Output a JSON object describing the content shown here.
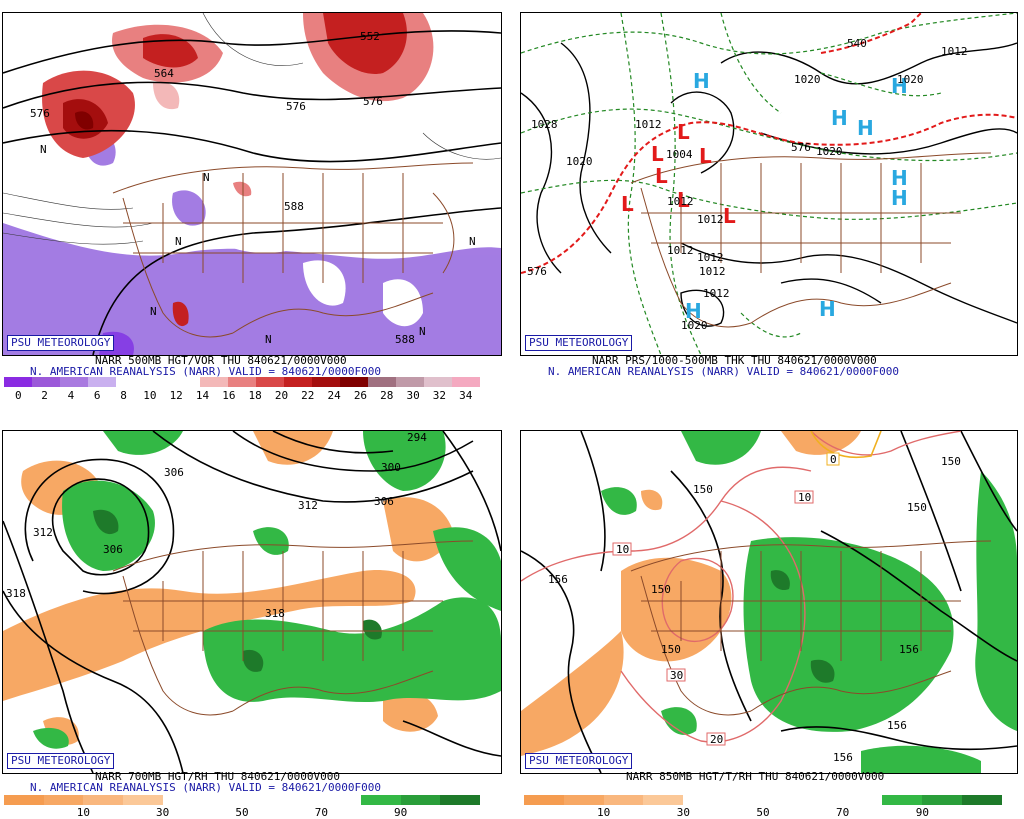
{
  "panels": [
    {
      "id": "p500",
      "badge": "PSU METEOROLOGY",
      "caption1": "NARR 500MB HGT/VOR THU 840621/0000V000",
      "caption2": "N. AMERICAN REANALYSIS (NARR) VALID = 840621/0000F000",
      "contour_labels": [
        "552",
        "564",
        "576",
        "576",
        "588",
        "588",
        "576",
        "N",
        "N",
        "N",
        "N",
        "N",
        "N",
        "N"
      ],
      "colorbar": {
        "colors": [
          "#8a2be2",
          "#9b59d9",
          "#a97ae0",
          "#c9b0ef",
          "#ffffff",
          "#ffffff",
          "#ffffff",
          "#f3b8b8",
          "#e88080",
          "#d94848",
          "#c42020",
          "#a40e0e",
          "#800000",
          "#a07080",
          "#c09aa8",
          "#e0c0cc",
          "#f4a9c0"
        ],
        "ticks": [
          "0",
          "2",
          "4",
          "6",
          "8",
          "10",
          "12",
          "14",
          "16",
          "18",
          "20",
          "22",
          "24",
          "26",
          "28",
          "30",
          "32",
          "34"
        ]
      }
    },
    {
      "id": "psfc",
      "badge": "PSU METEOROLOGY",
      "caption1": "NARR PRS/1000-500MB THK THU 840621/0000V000",
      "caption2": "N. AMERICAN REANALYSIS (NARR) VALID = 840621/0000F000",
      "contour_labels": [
        "1020",
        "1028",
        "1020",
        "1012",
        "1012",
        "1020",
        "1012",
        "1012",
        "1012",
        "1020",
        "1012",
        "1020",
        "1012",
        "576",
        "576",
        "540",
        "1004",
        "1012"
      ],
      "high_label": "H",
      "low_label": "L"
    },
    {
      "id": "p700",
      "badge": "PSU METEOROLOGY",
      "caption1": "NARR 700MB HGT/RH THU 840621/0000V000",
      "caption2": "N. AMERICAN REANALYSIS (NARR) VALID = 840621/0000F000",
      "contour_labels": [
        "306",
        "312",
        "306",
        "312",
        "300",
        "306",
        "294",
        "318",
        "318"
      ],
      "colorbar": {
        "colors": [
          "#f59c50",
          "#f7a864",
          "#f9b77e",
          "#fbc898",
          "#ffffff",
          "#ffffff",
          "#ffffff",
          "#ffffff",
          "#ffffff",
          "#33b845",
          "#2a9e3a",
          "#1e7a2a"
        ],
        "ticks": [
          "10",
          "30",
          "50",
          "70",
          "90"
        ]
      }
    },
    {
      "id": "p850",
      "badge": "PSU METEOROLOGY",
      "caption1": "NARR 850MB HGT/T/RH THU 840621/0000V000",
      "caption2": "",
      "contour_labels": [
        "156",
        "150",
        "150",
        "150",
        "156",
        "156",
        "156",
        "150",
        "150"
      ],
      "temp_labels": [
        "10",
        "10",
        "30",
        "20",
        "0"
      ],
      "colorbar": {
        "colors": [
          "#f59c50",
          "#f7a864",
          "#f9b77e",
          "#fbc898",
          "#ffffff",
          "#ffffff",
          "#ffffff",
          "#ffffff",
          "#ffffff",
          "#33b845",
          "#2a9e3a",
          "#1e7a2a"
        ],
        "ticks": [
          "10",
          "30",
          "50",
          "70",
          "90"
        ]
      }
    }
  ]
}
